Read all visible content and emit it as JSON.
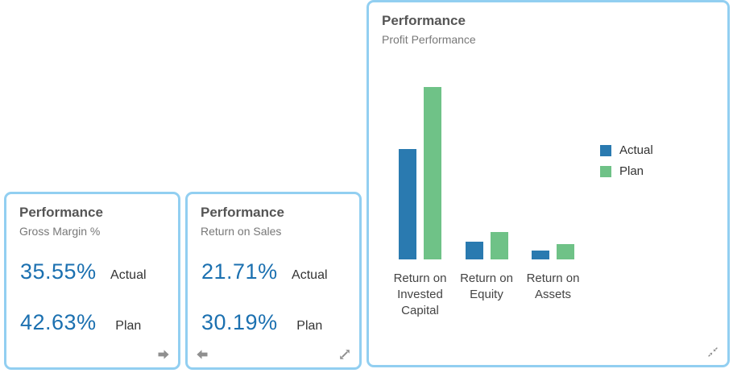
{
  "tiles": {
    "gross_margin": {
      "title": "Performance",
      "subtitle": "Gross Margin %",
      "kpis": [
        {
          "value": "35.55%",
          "label": "Actual"
        },
        {
          "value": "42.63%",
          "label": "Plan"
        }
      ],
      "footer_icon": "arrow-right"
    },
    "return_on_sales": {
      "title": "Performance",
      "subtitle": "Return on Sales",
      "kpis": [
        {
          "value": "21.71%",
          "label": "Actual"
        },
        {
          "value": "30.19%",
          "label": "Plan"
        }
      ],
      "footer_icons": [
        "arrow-left",
        "resize-expand"
      ]
    },
    "profit_performance": {
      "title": "Performance",
      "subtitle": "Profit Performance",
      "footer_icon": "resize-collapse"
    }
  },
  "chart_data": {
    "type": "bar",
    "title": "Profit Performance",
    "categories": [
      "Return on Invested Capital",
      "Return on Equity",
      "Return on Assets"
    ],
    "categories_wrapped": [
      [
        "Return on",
        "Invested",
        "Capital"
      ],
      [
        "Return on",
        "Equity"
      ],
      [
        "Return on",
        "Assets"
      ]
    ],
    "series": [
      {
        "name": "Actual",
        "color": "#2A7AB0",
        "values": [
          137,
          22,
          11
        ]
      },
      {
        "name": "Plan",
        "color": "#6FC287",
        "values": [
          214,
          34,
          19
        ]
      }
    ],
    "ylim": [
      0,
      215
    ],
    "value_note": "no y-axis or gridlines shown; values are relative bar heights (screen px)",
    "legend_position": "right",
    "grid": false
  },
  "colors": {
    "tile_border": "#92CFF1",
    "title": "#555555",
    "subtitle": "#787878",
    "kpi_value": "#1B70B0",
    "kpi_label": "#333333",
    "bar_actual": "#2A7AB0",
    "bar_plan": "#6FC287",
    "axis_label": "#444444",
    "icon": "#8F8F8F"
  }
}
